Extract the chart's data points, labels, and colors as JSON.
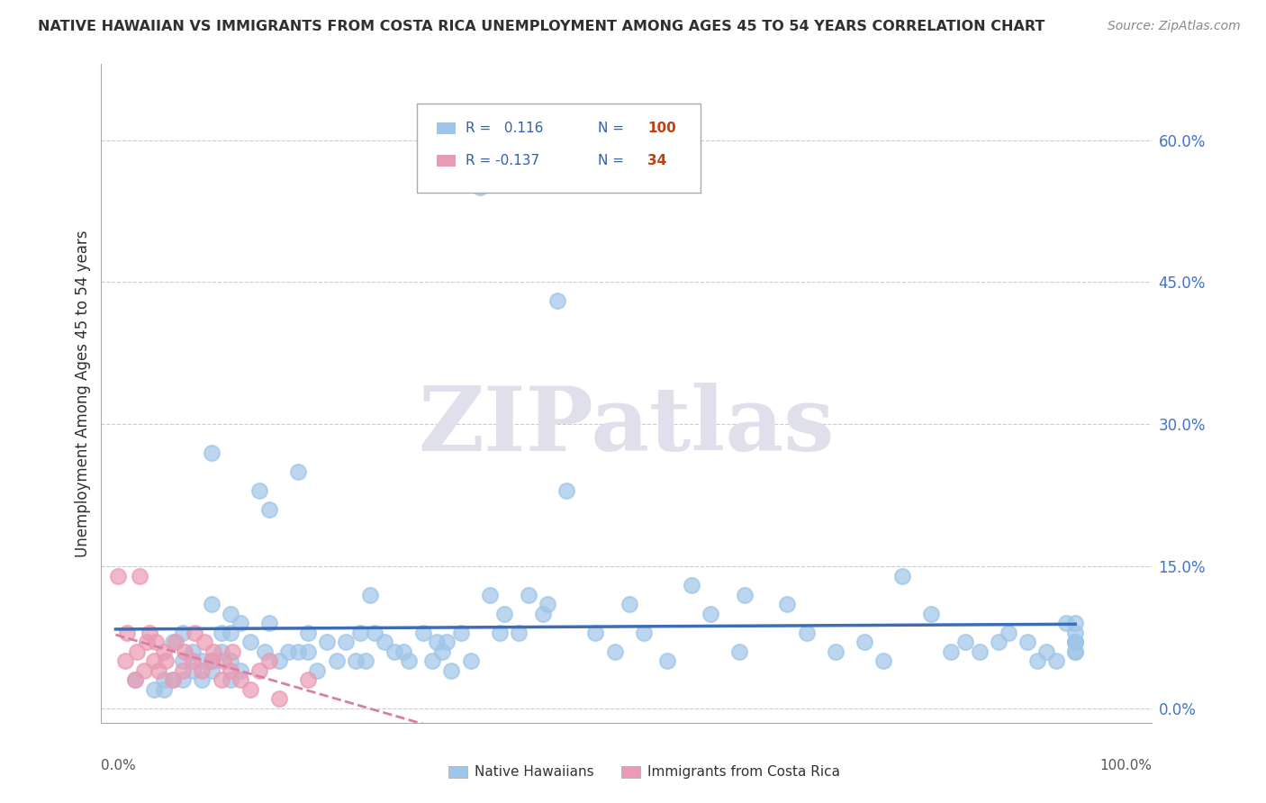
{
  "title": "NATIVE HAWAIIAN VS IMMIGRANTS FROM COSTA RICA UNEMPLOYMENT AMONG AGES 45 TO 54 YEARS CORRELATION CHART",
  "source": "Source: ZipAtlas.com",
  "ylabel": "Unemployment Among Ages 45 to 54 years",
  "x_tick_left_label": "0.0%",
  "x_tick_right_label": "100.0%",
  "y_ticks": [
    0.0,
    0.15,
    0.3,
    0.45,
    0.6
  ],
  "y_tick_labels": [
    "0.0%",
    "15.0%",
    "30.0%",
    "45.0%",
    "60.0%"
  ],
  "xlim": [
    -0.015,
    1.08
  ],
  "ylim": [
    -0.015,
    0.68
  ],
  "native_R": 0.116,
  "native_N": 100,
  "costa_rica_R": -0.137,
  "costa_rica_N": 34,
  "native_color": "#9fc5e8",
  "native_edge_color": "#9fc5e8",
  "costa_rica_color": "#ea9ab2",
  "costa_rica_edge_color": "#ea9ab2",
  "native_line_color": "#3d6db5",
  "costa_rica_line_color": "#d97fa5",
  "legend_label_native": "Native Hawaiians",
  "legend_label_costa": "Immigrants from Costa Rica",
  "watermark_text": "ZIPatlas",
  "watermark_color": "#e0e0ec",
  "r_n_text_color": "#3060b0",
  "r_n_n_color": "#c04010",
  "grid_color": "#cccccc",
  "title_color": "#303030",
  "source_color": "#888888",
  "ylabel_color": "#303030",
  "native_x": [
    0.02,
    0.04,
    0.05,
    0.05,
    0.06,
    0.06,
    0.07,
    0.07,
    0.07,
    0.08,
    0.08,
    0.09,
    0.09,
    0.1,
    0.1,
    0.1,
    0.1,
    0.11,
    0.11,
    0.12,
    0.12,
    0.12,
    0.12,
    0.13,
    0.13,
    0.14,
    0.15,
    0.155,
    0.16,
    0.16,
    0.17,
    0.18,
    0.19,
    0.19,
    0.2,
    0.2,
    0.21,
    0.22,
    0.23,
    0.24,
    0.25,
    0.255,
    0.26,
    0.265,
    0.27,
    0.28,
    0.29,
    0.3,
    0.305,
    0.32,
    0.33,
    0.335,
    0.34,
    0.345,
    0.35,
    0.36,
    0.37,
    0.38,
    0.39,
    0.4,
    0.405,
    0.42,
    0.43,
    0.445,
    0.45,
    0.46,
    0.47,
    0.5,
    0.52,
    0.535,
    0.55,
    0.575,
    0.6,
    0.62,
    0.65,
    0.655,
    0.7,
    0.72,
    0.75,
    0.78,
    0.8,
    0.82,
    0.85,
    0.87,
    0.885,
    0.9,
    0.92,
    0.93,
    0.95,
    0.96,
    0.97,
    0.98,
    0.99,
    1.0,
    1.0,
    1.0,
    1.0,
    1.0,
    1.0,
    1.0
  ],
  "native_y": [
    0.03,
    0.02,
    0.02,
    0.03,
    0.03,
    0.07,
    0.08,
    0.03,
    0.05,
    0.04,
    0.06,
    0.05,
    0.03,
    0.05,
    0.04,
    0.11,
    0.27,
    0.06,
    0.08,
    0.05,
    0.03,
    0.08,
    0.1,
    0.09,
    0.04,
    0.07,
    0.23,
    0.06,
    0.21,
    0.09,
    0.05,
    0.06,
    0.25,
    0.06,
    0.08,
    0.06,
    0.04,
    0.07,
    0.05,
    0.07,
    0.05,
    0.08,
    0.05,
    0.12,
    0.08,
    0.07,
    0.06,
    0.06,
    0.05,
    0.08,
    0.05,
    0.07,
    0.06,
    0.07,
    0.04,
    0.08,
    0.05,
    0.55,
    0.12,
    0.08,
    0.1,
    0.08,
    0.12,
    0.1,
    0.11,
    0.43,
    0.23,
    0.08,
    0.06,
    0.11,
    0.08,
    0.05,
    0.13,
    0.1,
    0.06,
    0.12,
    0.11,
    0.08,
    0.06,
    0.07,
    0.05,
    0.14,
    0.1,
    0.06,
    0.07,
    0.06,
    0.07,
    0.08,
    0.07,
    0.05,
    0.06,
    0.05,
    0.09,
    0.06,
    0.07,
    0.07,
    0.08,
    0.09,
    0.06,
    0.07
  ],
  "costa_x": [
    0.002,
    0.01,
    0.012,
    0.02,
    0.022,
    0.025,
    0.03,
    0.032,
    0.035,
    0.04,
    0.042,
    0.045,
    0.05,
    0.052,
    0.06,
    0.062,
    0.07,
    0.072,
    0.08,
    0.082,
    0.09,
    0.092,
    0.1,
    0.102,
    0.11,
    0.112,
    0.12,
    0.122,
    0.13,
    0.14,
    0.15,
    0.16,
    0.17,
    0.2
  ],
  "costa_y": [
    0.14,
    0.05,
    0.08,
    0.03,
    0.06,
    0.14,
    0.04,
    0.07,
    0.08,
    0.05,
    0.07,
    0.04,
    0.06,
    0.05,
    0.03,
    0.07,
    0.04,
    0.06,
    0.05,
    0.08,
    0.04,
    0.07,
    0.05,
    0.06,
    0.03,
    0.05,
    0.04,
    0.06,
    0.03,
    0.02,
    0.04,
    0.05,
    0.01,
    0.03
  ]
}
